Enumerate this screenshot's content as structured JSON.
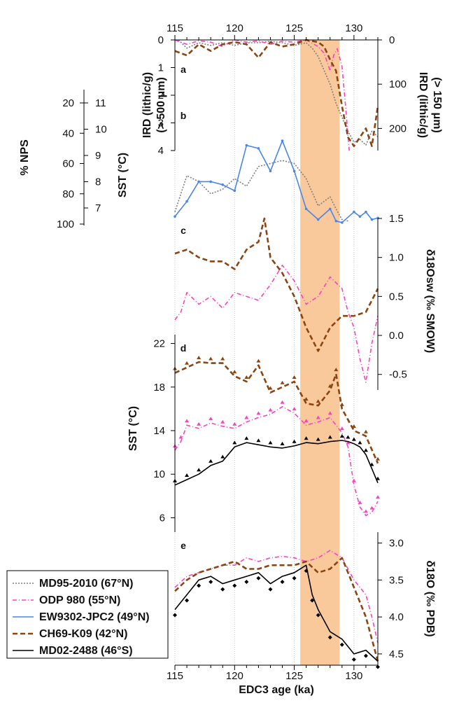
{
  "chart_data": {
    "type": "line",
    "x_axis": {
      "label": "EDC3 age (ka)",
      "range": [
        115,
        132
      ],
      "ticks": [
        115,
        120,
        125,
        130
      ],
      "tick_labels": [
        "115",
        "120",
        "125",
        "130"
      ]
    },
    "highlight_band": {
      "x_range": [
        125.5,
        128.8
      ],
      "color": "#f9c99b"
    },
    "panels": [
      {
        "label": "a",
        "axes": [
          {
            "side": "left",
            "label": "IRD (lithic/g)\n(> 500 μm)",
            "range": [
              0,
              4
            ],
            "ticks": [
              0,
              1,
              2,
              3,
              4
            ],
            "tick_labels": [
              "0",
              "1",
              "2",
              "3",
              "4"
            ],
            "reversed": true
          },
          {
            "side": "right",
            "label": "IRD (lithic/g)\n(> 150 μm)",
            "range": [
              0,
              250
            ],
            "ticks": [
              0,
              100,
              200
            ],
            "tick_labels": [
              "0",
              "100",
              "200"
            ],
            "reversed": true
          }
        ],
        "series": [
          {
            "name": "MD95-2010 (67°N)",
            "axis": "left",
            "x": [
              115.3,
              116,
              117,
              118,
              119,
              120,
              121,
              122,
              123,
              124,
              125,
              126,
              126.5,
              127,
              127.5,
              128,
              128.5,
              129,
              129.5,
              130,
              130.5,
              131,
              131.5,
              132
            ],
            "y": [
              0,
              0.3,
              0.1,
              0.2,
              0.1,
              0.2,
              0.1,
              0.1,
              0.05,
              0.1,
              0.2,
              0.1,
              0.3,
              0.6,
              1.1,
              1.6,
              2.3,
              2.8,
              3.3,
              3.7,
              3.6,
              3.8,
              3.3,
              3.5
            ]
          },
          {
            "name": "ODP 980 (55°N)",
            "axis": "right",
            "x": [
              115,
              116,
              117,
              118,
              119,
              120,
              121,
              122,
              123,
              124,
              125,
              126,
              127,
              127.5,
              128,
              128.3,
              128.6,
              129,
              129.3,
              129.6
            ],
            "y": [
              0,
              10,
              2,
              5,
              15,
              0,
              5,
              2,
              10,
              3,
              5,
              0,
              15,
              30,
              70,
              35,
              20,
              60,
              150,
              250
            ]
          },
          {
            "name": "CH69-K09 (42°N)",
            "axis": "right",
            "x": [
              115,
              116,
              117,
              118,
              119,
              120,
              121,
              122,
              123,
              124,
              125,
              126,
              127,
              127.5,
              128,
              128.5,
              129,
              129.5,
              130,
              131,
              131.5,
              132
            ],
            "y": [
              25,
              35,
              10,
              25,
              10,
              5,
              10,
              40,
              5,
              15,
              10,
              0,
              5,
              15,
              45,
              70,
              150,
              220,
              240,
              200,
              240,
              150
            ]
          }
        ]
      },
      {
        "label": "b",
        "axes": [
          {
            "side": "left",
            "label": "% NPS",
            "range": [
              20,
              100
            ],
            "ticks": [
              20,
              40,
              60,
              80,
              100
            ],
            "tick_labels": [
              "20",
              "40",
              "60",
              "80",
              "100"
            ],
            "reversed": false
          },
          {
            "side": "left-inner",
            "label": "SST (°C)",
            "range": [
              7,
              11
            ],
            "ticks": [
              7,
              8,
              9,
              10,
              11
            ],
            "tick_labels": [
              "7",
              "8",
              "9",
              "10",
              "11"
            ],
            "reversed": true
          }
        ],
        "series": [
          {
            "name": "MD95-2010 (67°N)",
            "axis": "%NPS",
            "x": [
              115,
              116,
              117,
              118,
              119,
              120,
              121,
              122,
              123,
              124,
              125,
              126,
              127,
              128,
              128.5,
              129,
              129.5
            ],
            "y": [
              92,
              68,
              72,
              80,
              77,
              70,
              75,
              62,
              60,
              58,
              60,
              70,
              88,
              82,
              90,
              97,
              98
            ]
          },
          {
            "name": "EW9302-JPC2 (49°N)",
            "axis": "%NPS",
            "x": [
              115,
              116,
              117,
              118,
              119,
              120,
              121,
              122,
              123,
              124,
              125,
              126,
              127,
              128,
              128.5,
              129,
              130,
              130.5,
              131,
              131.5,
              132
            ],
            "y": [
              95,
              85,
              72,
              72,
              74,
              78,
              48,
              50,
              65,
              45,
              65,
              90,
              97,
              90,
              98,
              99,
              92,
              95,
              92,
              97,
              96
            ]
          }
        ]
      },
      {
        "label": "c",
        "axes": [
          {
            "side": "right",
            "label": "δ18Osw (‰ SMOW)",
            "range": [
              -0.7,
              1.5
            ],
            "ticks": [
              -0.5,
              0,
              0.5,
              1,
              1.5
            ],
            "tick_labels": [
              "-0.5",
              "0.0",
              "0.5",
              "1.0",
              "1.5"
            ],
            "reversed": false
          }
        ],
        "series": [
          {
            "name": "ODP 980 (55°N)",
            "x": [
              115,
              115.5,
              116,
              117,
              118,
              119,
              120,
              121,
              122,
              123,
              124,
              125,
              126,
              127,
              128,
              129,
              129.5,
              130,
              130.5,
              131,
              131.5,
              132
            ],
            "y": [
              0.2,
              0.3,
              0.55,
              0.4,
              0.5,
              0.35,
              0.55,
              0.5,
              0.45,
              0.65,
              0.9,
              0.7,
              0.4,
              0.5,
              0.75,
              0.6,
              0.3,
              0.1,
              -0.3,
              -0.6,
              -0.1,
              0.25
            ]
          },
          {
            "name": "CH69-K09 (42°N)",
            "x": [
              115,
              116,
              117,
              118,
              119,
              120,
              121,
              122,
              122.5,
              123,
              124,
              125,
              126,
              127,
              128,
              129,
              130,
              131,
              132
            ],
            "y": [
              1.05,
              1.1,
              1.0,
              0.95,
              0.95,
              0.85,
              1.1,
              1.2,
              1.5,
              1.0,
              0.8,
              0.5,
              0.1,
              -0.2,
              0.1,
              0.25,
              0.25,
              0.3,
              0.6
            ]
          }
        ]
      },
      {
        "label": "d",
        "axes": [
          {
            "side": "left",
            "label": "SST (°C)",
            "range": [
              5,
              23
            ],
            "ticks": [
              6,
              10,
              14,
              18,
              22
            ],
            "tick_labels": [
              "6",
              "10",
              "14",
              "18",
              "22"
            ],
            "reversed": false
          }
        ],
        "series": [
          {
            "name": "ODP 980 (55°N)",
            "x": [
              115,
              115.5,
              116,
              117,
              118,
              119,
              120,
              121,
              122,
              123,
              124,
              125,
              126,
              127,
              128,
              129,
              129.5,
              130,
              130.5,
              131,
              131.5,
              132
            ],
            "y": [
              12.2,
              13,
              14.5,
              14.2,
              14.7,
              14.4,
              14.2,
              14.8,
              15.2,
              15.5,
              16.2,
              15.6,
              14.5,
              14.8,
              15.2,
              13.8,
              12.5,
              9,
              7,
              6.2,
              6.5,
              7.5
            ]
          },
          {
            "name": "CH69-K09 (42°N)",
            "x": [
              115,
              116,
              117,
              118,
              119,
              120,
              121,
              122,
              123,
              124,
              125,
              126,
              127,
              128,
              128.5,
              129,
              130,
              131,
              132
            ],
            "y": [
              19.3,
              19.8,
              20.3,
              20.2,
              20.2,
              19,
              18.5,
              20,
              17.5,
              18,
              18.5,
              16.5,
              16.3,
              17.7,
              19.2,
              16,
              14,
              13.5,
              11
            ]
          },
          {
            "name": "MD02-2488 (46°S)",
            "x": [
              115,
              116,
              117,
              118,
              119,
              120,
              121,
              122,
              123,
              124,
              125,
              126,
              127,
              128,
              129,
              129.5,
              130,
              130.5,
              131,
              131.5,
              132
            ],
            "y": [
              9,
              9.5,
              10,
              10.8,
              11.2,
              12.5,
              12.9,
              12.7,
              12.5,
              12.4,
              12.6,
              12.9,
              12.8,
              13,
              13.1,
              13,
              12.8,
              12.5,
              11.8,
              10.5,
              9.2
            ]
          }
        ]
      },
      {
        "label": "e",
        "axes": [
          {
            "side": "right",
            "label": "δ18O (‰ PDB)",
            "range": [
              2.9,
              4.7
            ],
            "ticks": [
              3.0,
              3.5,
              4.0,
              4.5
            ],
            "tick_labels": [
              "3.0",
              "3.5",
              "4.0",
              "4.5"
            ],
            "reversed": true
          }
        ],
        "series": [
          {
            "name": "ODP 980 (55°N)",
            "x": [
              115,
              116,
              117,
              118,
              119,
              120,
              121,
              122,
              123,
              124,
              125,
              126,
              127,
              128,
              129,
              130,
              131,
              131.5,
              132
            ],
            "y": [
              3.6,
              3.45,
              3.4,
              3.35,
              3.3,
              3.3,
              3.2,
              3.25,
              3.2,
              3.18,
              3.2,
              3.25,
              3.2,
              3.1,
              3.2,
              3.5,
              3.7,
              4,
              4.35
            ]
          },
          {
            "name": "CH69-K09 (42°N)",
            "x": [
              115,
              116,
              117,
              118,
              119,
              120,
              121,
              122,
              123,
              124,
              125,
              126,
              127,
              128,
              129,
              130,
              131,
              132
            ],
            "y": [
              3.65,
              3.5,
              3.4,
              3.35,
              3.3,
              3.25,
              3.35,
              3.35,
              3.3,
              3.3,
              3.3,
              3.25,
              3.4,
              3.35,
              3.2,
              3.6,
              4.0,
              4.6
            ]
          },
          {
            "name": "MD02-2488 (46°S)",
            "x": [
              115,
              116,
              117,
              118,
              119,
              120,
              121,
              122,
              123,
              124,
              125,
              126,
              126.5,
              127,
              128,
              129,
              130,
              131,
              132
            ],
            "y": [
              3.9,
              3.7,
              3.5,
              3.45,
              3.55,
              3.5,
              3.45,
              3.4,
              3.55,
              3.45,
              3.4,
              3.3,
              3.7,
              3.9,
              4.2,
              4.3,
              4.5,
              4.45,
              4.6
            ]
          }
        ]
      }
    ],
    "legend": {
      "placement": "bottom-left",
      "entries": [
        {
          "name": "MD95-2010 (67°N)",
          "color": "#7f7f7f",
          "style": "dotted"
        },
        {
          "name": "ODP 980 (55°N)",
          "color": "#ff40c0",
          "style": "dashed-dot"
        },
        {
          "name": "EW9302-JPC2 (49°N)",
          "color": "#4a86e8",
          "style": "solid-marker"
        },
        {
          "name": "CH69-K09 (42°N)",
          "color": "#8b4513",
          "style": "dashed"
        },
        {
          "name": "MD02-2488 (46°S)",
          "color": "#000000",
          "style": "solid"
        }
      ]
    }
  }
}
